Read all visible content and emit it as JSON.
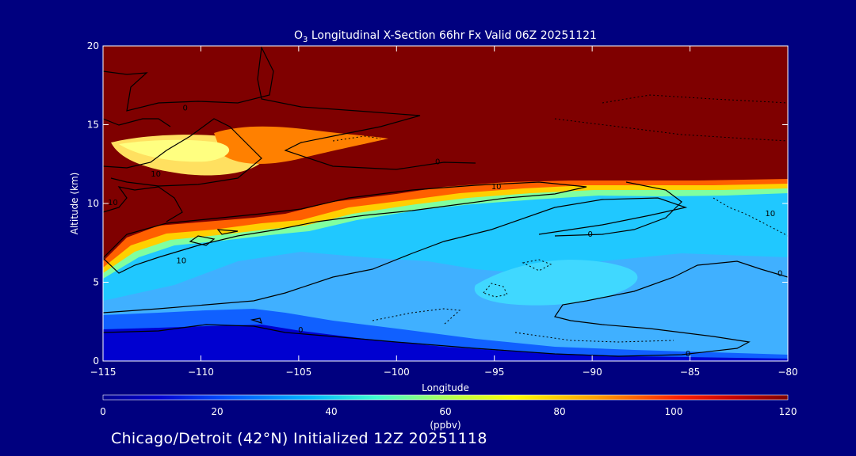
{
  "chart_data": {
    "type": "heatmap",
    "title_prefix": "O",
    "title_sub": "3",
    "title_rest": " Longitudinal X-Section 66hr  Fx Valid 06Z 20251121",
    "xlabel": "Longitude",
    "ylabel": "Altitude (km)",
    "xlim": [
      -115,
      -80
    ],
    "ylim": [
      0,
      20
    ],
    "x_ticks": [
      -115,
      -110,
      -105,
      -100,
      -95,
      -90,
      -85,
      -80
    ],
    "x_tick_labels": [
      "−115",
      "−110",
      "−105",
      "−100",
      "−95",
      "−90",
      "−85",
      "−80"
    ],
    "y_ticks": [
      0,
      5,
      10,
      15,
      20
    ],
    "y_tick_labels": [
      "0",
      "5",
      "10",
      "15",
      "20"
    ],
    "colorbar": {
      "min": 0,
      "max": 120,
      "unit": "(ppbv)",
      "ticks": [
        0,
        20,
        40,
        60,
        80,
        100,
        120
      ],
      "tick_labels": [
        "0",
        "20",
        "40",
        "60",
        "80",
        "100",
        "120"
      ]
    },
    "contour_labels": [
      {
        "text": "0",
        "x": -110.8,
        "y": 16.1
      },
      {
        "text": "0",
        "x": -97.9,
        "y": 12.7
      },
      {
        "text": "10",
        "x": -112.3,
        "y": 11.9
      },
      {
        "text": "10",
        "x": -114.5,
        "y": 10.1
      },
      {
        "text": "10",
        "x": -94.9,
        "y": 11.1
      },
      {
        "text": "0",
        "x": -90.1,
        "y": 8.1
      },
      {
        "text": "10",
        "x": -80.9,
        "y": 9.4
      },
      {
        "text": "10",
        "x": -111.0,
        "y": 6.4
      },
      {
        "text": "0",
        "x": -80.4,
        "y": 5.6
      },
      {
        "text": "0",
        "x": -104.9,
        "y": 2.0
      },
      {
        "text": "0",
        "x": -85.1,
        "y": 0.5
      }
    ]
  },
  "footer": {
    "text": "Chicago/Detroit (42°N) Initialized 12Z 20251118"
  },
  "colors": {
    "background": "#00007f",
    "high_ozone": "#7f0000",
    "foreground": "#ffffff",
    "contour": "#000000"
  }
}
